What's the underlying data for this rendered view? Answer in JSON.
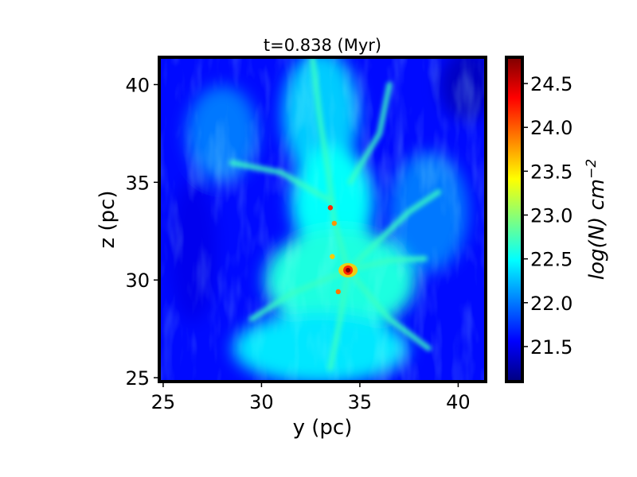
{
  "chart_data": {
    "type": "heatmap",
    "title": "t=0.838 (Myr)",
    "xlabel": "y (pc)",
    "ylabel": "z (pc)",
    "xlim": [
      24.8,
      41.4
    ],
    "ylim": [
      24.8,
      41.4
    ],
    "x_ticks": [
      25,
      30,
      35,
      40
    ],
    "y_ticks": [
      25,
      30,
      35,
      40
    ],
    "x_tick_labels": [
      "25",
      "30",
      "35",
      "40"
    ],
    "y_tick_labels": [
      "25",
      "30",
      "35",
      "40"
    ],
    "colorbar": {
      "label_base": "log(N) cm",
      "label_exponent": "−2",
      "range": [
        21.1,
        24.8
      ],
      "ticks": [
        21.5,
        22.0,
        22.5,
        23.0,
        23.5,
        24.0,
        24.5
      ],
      "tick_labels": [
        "21.5",
        "22.0",
        "22.5",
        "23.0",
        "23.5",
        "24.0",
        "24.5"
      ],
      "colormap": "jet",
      "colormap_stops": [
        "#00007f",
        "#0000ff",
        "#007fff",
        "#00ffff",
        "#7fff7f",
        "#ffff00",
        "#ff7f00",
        "#ff0000",
        "#7f0000"
      ]
    },
    "features": {
      "background_level": 21.6,
      "filament_level": 22.7,
      "core_peak": {
        "y": 34.4,
        "z": 30.5,
        "value": 24.8
      },
      "secondary_peaks": [
        {
          "y": 33.5,
          "z": 33.7,
          "value": 24.2
        },
        {
          "y": 33.7,
          "z": 32.9,
          "value": 23.8
        },
        {
          "y": 33.9,
          "z": 29.4,
          "value": 23.9
        },
        {
          "y": 33.6,
          "z": 31.2,
          "value": 23.6
        }
      ]
    }
  }
}
